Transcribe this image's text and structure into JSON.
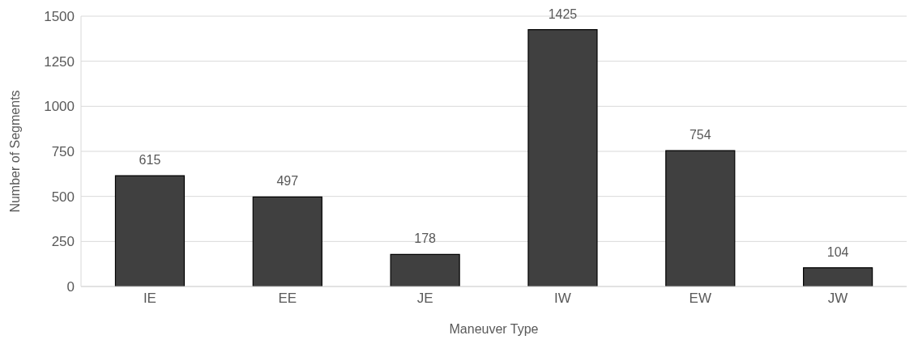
{
  "chart_data": {
    "type": "bar",
    "xlabel": "Maneuver Type",
    "ylabel": "Number of Segments",
    "categories": [
      "IE",
      "EE",
      "JE",
      "IW",
      "EW",
      "JW"
    ],
    "values": [
      615,
      497,
      178,
      1425,
      754,
      104
    ],
    "color": "#404040",
    "ylim": [
      0,
      1500
    ],
    "yticks": [
      0,
      250,
      500,
      750,
      1000,
      1250,
      1500
    ],
    "grid": "y",
    "data_labels": true,
    "legend": false
  }
}
